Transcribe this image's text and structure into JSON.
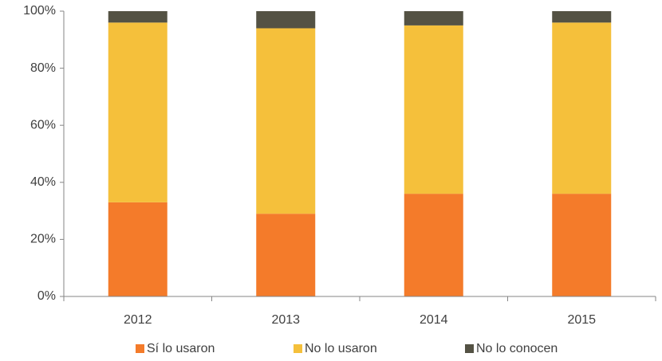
{
  "chart_data": {
    "type": "bar",
    "stacked": true,
    "categories": [
      "2012",
      "2013",
      "2014",
      "2015"
    ],
    "series": [
      {
        "name": "Sí lo usaron",
        "color": "#f47b2a",
        "values": [
          33,
          29,
          36,
          36
        ]
      },
      {
        "name": "No lo usaron",
        "color": "#f5c03b",
        "values": [
          63,
          65,
          59,
          60
        ]
      },
      {
        "name": "No lo conocen",
        "color": "#545244",
        "values": [
          4,
          6,
          5,
          4
        ]
      }
    ],
    "ylim": [
      0,
      100
    ],
    "yticks": [
      {
        "value": 0,
        "label": "0%"
      },
      {
        "value": 20,
        "label": "20%"
      },
      {
        "value": 40,
        "label": "40%"
      },
      {
        "value": 60,
        "label": "60%"
      },
      {
        "value": 80,
        "label": "80%"
      },
      {
        "value": 100,
        "label": "100%"
      }
    ],
    "grid": false,
    "legend": "bottom"
  }
}
